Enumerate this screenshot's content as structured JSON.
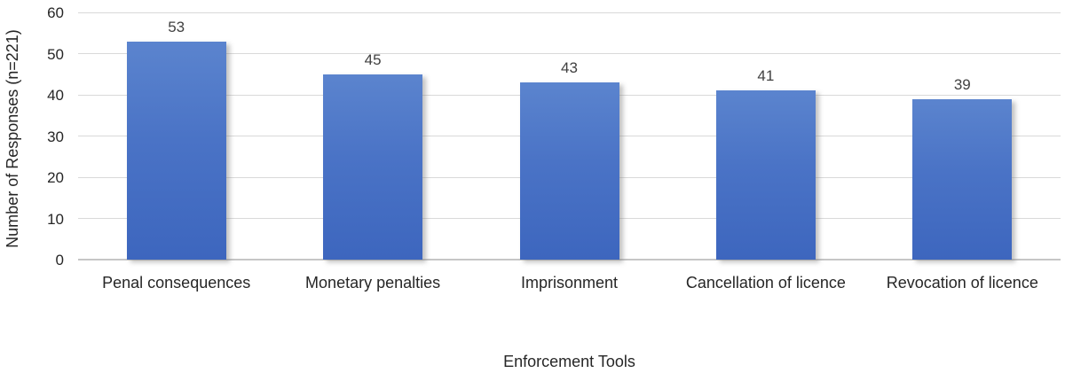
{
  "chart_data": {
    "type": "bar",
    "categories": [
      "Penal consequences",
      "Monetary penalties",
      "Imprisonment",
      "Cancellation of licence",
      "Revocation of licence"
    ],
    "values": [
      53,
      45,
      43,
      41,
      39
    ],
    "title": "",
    "xlabel": "Enforcement Tools",
    "ylabel": "Number of Responses (n=221)",
    "ylim": [
      0,
      60
    ],
    "yticks": [
      0,
      10,
      20,
      30,
      40,
      50,
      60
    ],
    "grid": "horizontal-only",
    "legend": "none",
    "bar_color_top": "#5b84ce",
    "bar_color_bottom": "#3d66be",
    "gridline_color": "#d9d9d9",
    "value_label_color": "#404040",
    "axis_text_color": "#262626",
    "background_color": "#ffffff"
  }
}
